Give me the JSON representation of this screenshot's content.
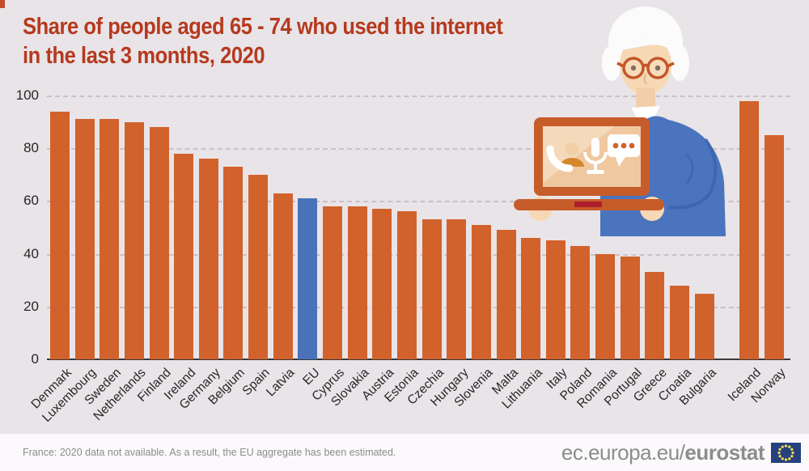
{
  "title": {
    "line1": "Share of people aged 65 - 74 who used the internet",
    "line2": "in the last 3 months, 2020"
  },
  "chart_data": {
    "type": "bar",
    "title": "Share of people aged 65 - 74 who used the internet in the last 3 months, 2020",
    "categories": [
      "Denmark",
      "Luxembourg",
      "Sweden",
      "Netherlands",
      "Finland",
      "Ireland",
      "Germany",
      "Belgium",
      "Spain",
      "Latvia",
      "EU",
      "Cyprus",
      "Slovakia",
      "Austria",
      "Estonia",
      "Czechia",
      "Hungary",
      "Slovenia",
      "Malta",
      "Lithuania",
      "Italy",
      "Poland",
      "Romania",
      "Portugal",
      "Greece",
      "Croatia",
      "Bulgaria",
      "Iceland",
      "Norway"
    ],
    "values": [
      94,
      91,
      91,
      90,
      88,
      78,
      76,
      73,
      70,
      63,
      61,
      58,
      58,
      57,
      56,
      53,
      53,
      51,
      49,
      46,
      45,
      43,
      40,
      39,
      33,
      28,
      25,
      98,
      85
    ],
    "highlight_category": "EU",
    "gap_after_index": 26,
    "xlabel": "",
    "ylabel": "",
    "ylim": [
      0,
      100
    ],
    "yticks": [
      0,
      20,
      40,
      60,
      80,
      100
    ],
    "grid": "dashed-horizontal",
    "legend": "none",
    "bar_color": "#D2622B",
    "highlight_color": "#4A72B8"
  },
  "footer": {
    "note": "France: 2020 data not available. As a result, the EU aggregate has been estimated.",
    "url_regular": "ec.europa.eu/",
    "url_bold": "eurostat"
  },
  "illustration_icons": [
    "phone-call-icon",
    "microphone-icon",
    "chat-bubble-icon"
  ],
  "theme": {
    "background": "#E9E4E8",
    "title_color": "#B53A1E",
    "axis_text_color": "#262626",
    "footer_background": "#FBF9FB",
    "footer_text_color": "#8D8D8D",
    "eu_flag_blue": "#26417E",
    "eu_flag_star": "#FFDE4F"
  }
}
